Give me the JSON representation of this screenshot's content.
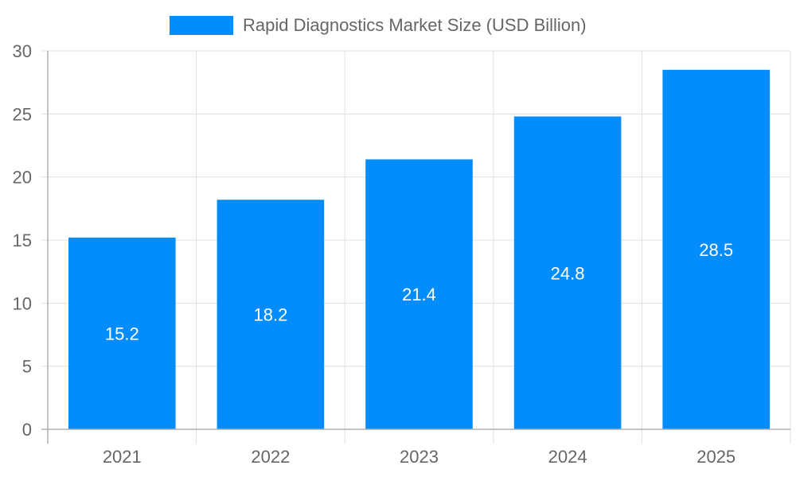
{
  "colors": {
    "bar": "#038cfc",
    "grid": "#e0e0e0",
    "axis": "#b0b0b0",
    "tick_text": "#666666",
    "label_text": "#ffffff"
  },
  "legend": {
    "label": "Rapid Diagnostics Market Size (USD Billion)"
  },
  "chart_data": {
    "type": "bar",
    "title": "",
    "categories": [
      "2021",
      "2022",
      "2023",
      "2024",
      "2025"
    ],
    "series": [
      {
        "name": "Rapid Diagnostics Market Size (USD Billion)",
        "values": [
          15.2,
          18.2,
          21.4,
          24.8,
          28.5
        ]
      }
    ],
    "values": [
      15.2,
      18.2,
      21.4,
      24.8,
      28.5
    ],
    "data_labels": [
      "15.2",
      "18.2",
      "21.4",
      "24.8",
      "28.5"
    ],
    "xlabel": "",
    "ylabel": "",
    "ylim": [
      0,
      30
    ],
    "yticks": [
      0,
      5,
      10,
      15,
      20,
      25,
      30
    ],
    "grid": true,
    "legend_position": "top"
  }
}
